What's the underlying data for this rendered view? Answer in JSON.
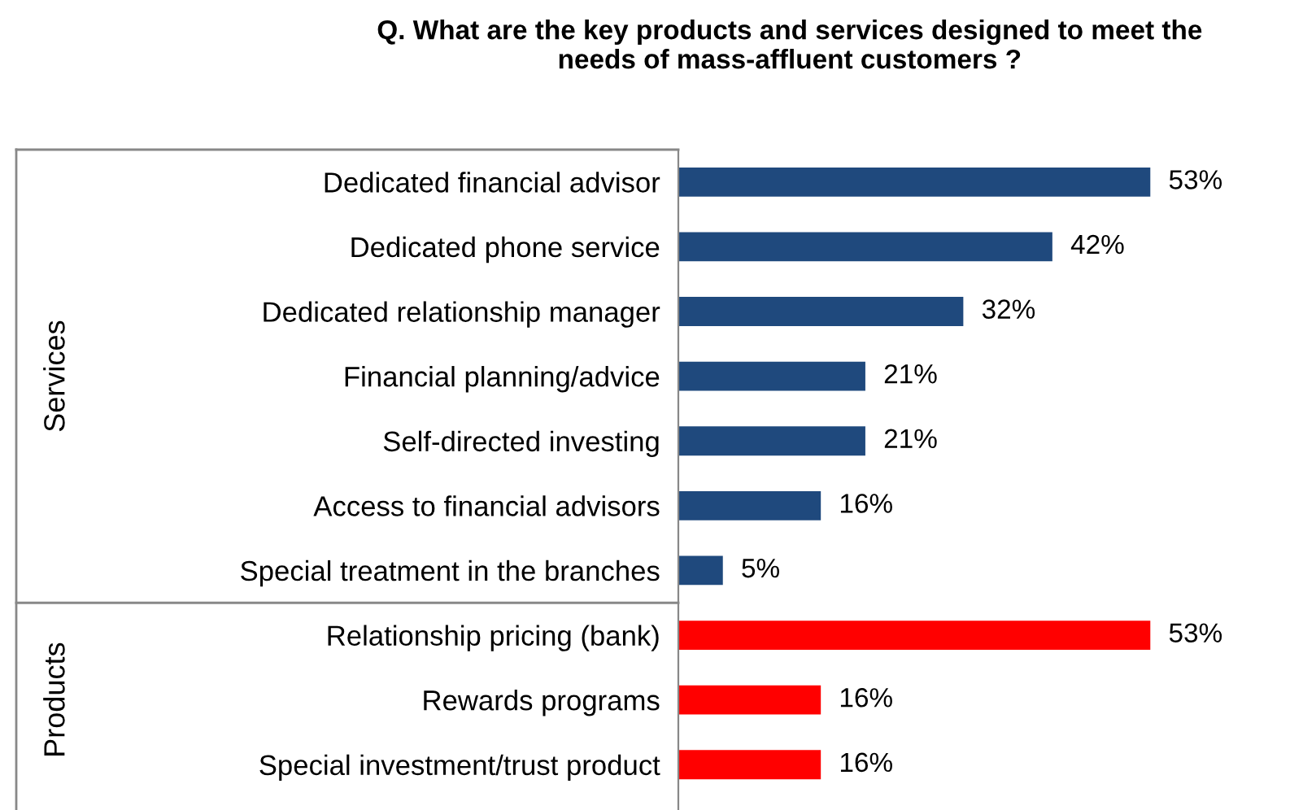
{
  "chart_data": {
    "type": "bar",
    "orientation": "horizontal",
    "title": "Q. What are the key products and services designed to meet the\nneeds of mass-affluent customers ?",
    "categories": [
      "Dedicated financial advisor",
      "Dedicated phone service",
      "Dedicated relationship manager",
      "Financial planning/advice",
      "Self-directed investing",
      "Access to financial advisors",
      "Special treatment in the branches",
      "Relationship pricing (bank)",
      "Rewards programs",
      "Special investment/trust product"
    ],
    "values": [
      53,
      42,
      32,
      21,
      21,
      16,
      5,
      53,
      16,
      16
    ],
    "value_labels": [
      "53%",
      "42%",
      "32%",
      "21%",
      "21%",
      "16%",
      "5%",
      "53%",
      "16%",
      "16%"
    ],
    "colors": [
      "#1f497d",
      "#1f497d",
      "#1f497d",
      "#1f497d",
      "#1f497d",
      "#1f497d",
      "#1f497d",
      "#ff0000",
      "#ff0000",
      "#ff0000"
    ],
    "annotations": [
      "Services",
      "Products"
    ],
    "grid": false,
    "legend": false
  }
}
